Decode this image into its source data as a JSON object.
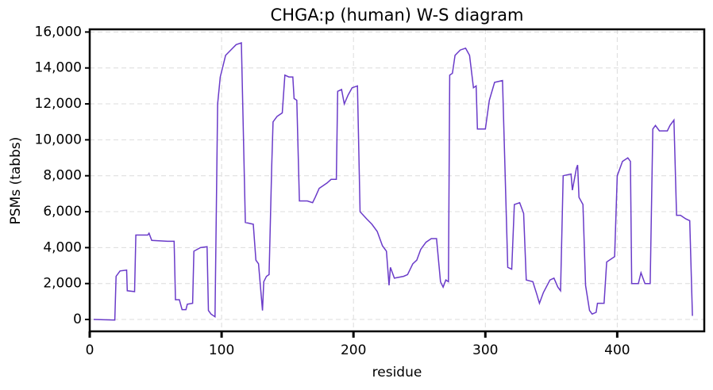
{
  "chart_data": {
    "type": "line",
    "title": "CHGA:p (human) W-S diagram",
    "xlabel": "residue",
    "ylabel": "PSMs (tabbs)",
    "x": [
      3,
      19,
      20,
      23,
      28,
      28.5,
      34,
      35,
      44,
      45,
      47,
      59,
      64,
      65,
      68,
      70,
      73,
      74,
      78,
      79,
      84,
      89,
      90,
      92,
      95,
      97,
      99,
      101,
      103,
      107,
      111,
      115,
      118,
      124,
      126,
      128,
      131,
      132,
      134,
      136,
      138,
      139,
      142,
      146,
      148,
      151,
      154,
      155,
      157,
      159,
      165,
      169,
      171,
      174,
      180,
      183,
      187,
      188,
      191,
      193,
      196,
      199,
      203,
      205,
      210,
      214,
      218,
      222,
      225,
      227,
      228,
      231,
      238,
      241,
      245,
      248,
      251,
      255,
      259,
      263,
      266,
      268,
      270,
      272,
      273,
      275,
      277,
      281,
      285,
      288,
      291,
      293,
      294,
      300,
      303,
      307,
      313,
      317,
      320,
      322,
      326,
      329,
      331,
      336,
      339,
      341,
      344,
      349,
      352,
      355,
      357,
      359,
      365,
      366,
      369,
      370,
      371,
      374,
      376,
      379,
      381,
      384,
      385,
      390,
      392,
      398,
      400,
      404,
      408,
      410,
      411,
      416,
      418,
      421,
      425,
      427,
      429,
      432,
      438,
      440,
      443,
      445,
      448,
      452,
      455,
      457
    ],
    "series": [
      {
        "name": "PSMs",
        "color": "#6a3bc9",
        "values": [
          0,
          -30,
          2400,
          2700,
          2750,
          1600,
          1550,
          4700,
          4700,
          4800,
          4400,
          4350,
          4350,
          1100,
          1100,
          550,
          550,
          850,
          900,
          3800,
          4000,
          4050,
          500,
          300,
          150,
          12000,
          13500,
          14100,
          14700,
          15000,
          15300,
          15400,
          5400,
          5300,
          3300,
          3100,
          500,
          2100,
          2400,
          2500,
          8500,
          11000,
          11300,
          11500,
          13600,
          13500,
          13500,
          12300,
          12200,
          6600,
          6600,
          6500,
          6800,
          7300,
          7600,
          7800,
          7800,
          12700,
          12800,
          12000,
          12500,
          12900,
          13000,
          6000,
          5600,
          5300,
          4900,
          4100,
          3800,
          1900,
          2900,
          2300,
          2400,
          2500,
          3100,
          3300,
          3900,
          4300,
          4500,
          4500,
          2100,
          1800,
          2200,
          2100,
          13600,
          13700,
          14700,
          15000,
          15100,
          14700,
          12900,
          13000,
          10600,
          10600,
          12200,
          13200,
          13300,
          2900,
          2800,
          6400,
          6500,
          5900,
          2200,
          2100,
          1400,
          900,
          1500,
          2200,
          2300,
          1800,
          1600,
          8000,
          8100,
          7200,
          8400,
          8600,
          6800,
          6400,
          1900,
          500,
          300,
          400,
          900,
          900,
          3200,
          3500,
          8000,
          8800,
          9000,
          8800,
          2000,
          2000,
          2600,
          2000,
          2000,
          10600,
          10800,
          10500,
          10500,
          10800,
          11100,
          5800,
          5800,
          5600,
          5500,
          200
        ]
      }
    ],
    "xlim": [
      0,
      466
    ],
    "ylim": [
      -660,
      16150
    ],
    "xticks": [
      0,
      100,
      200,
      300,
      400
    ],
    "yticks": [
      0,
      {
        "value": 2000,
        "label": "2,000"
      },
      {
        "value": 4000,
        "label": "4,000"
      },
      {
        "value": 6000,
        "label": "6,000"
      },
      {
        "value": 8000,
        "label": "8,000"
      },
      {
        "value": 10000,
        "label": "10,000"
      },
      {
        "value": 12000,
        "label": "12,000"
      },
      {
        "value": 14000,
        "label": "14,000"
      },
      {
        "value": 16000,
        "label": "16,000"
      }
    ],
    "grid": true
  }
}
